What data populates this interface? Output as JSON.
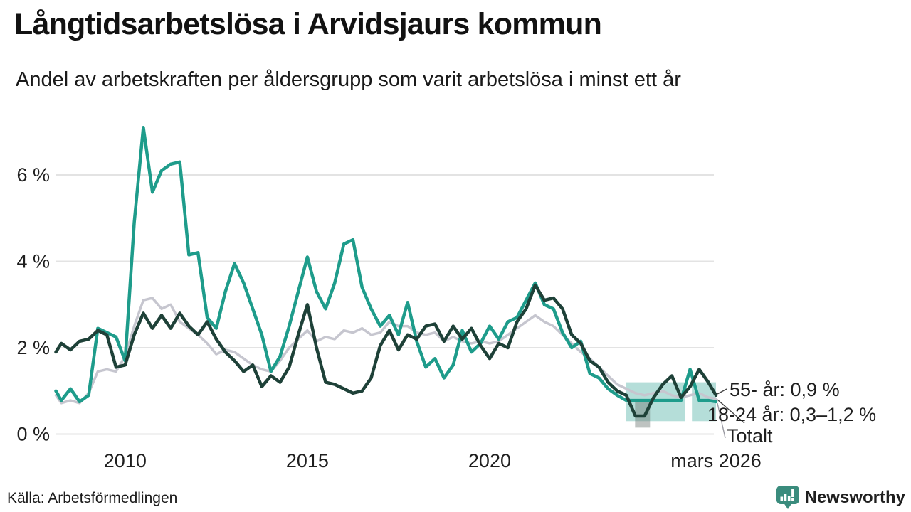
{
  "chart_data": {
    "type": "line",
    "title": "Långtidsarbetslösa i Arvidsjaurs kommun",
    "subtitle": "Andel av arbetskraften per åldersgrupp som varit arbetslösa i minst ett år",
    "x_unit": "year (monthly data, decimal years)",
    "xlim": [
      2008.09,
      2026.21
    ],
    "ylim": [
      0,
      7.6
    ],
    "grid": "horizontal",
    "legend_position": "end-of-line labels (right side)",
    "yticks": [
      {
        "v": 0,
        "label": "0 %"
      },
      {
        "v": 2,
        "label": "2 %"
      },
      {
        "v": 4,
        "label": "4 %"
      },
      {
        "v": 6,
        "label": "6 %"
      }
    ],
    "xticks": [
      {
        "v": 2010,
        "label": "2010"
      },
      {
        "v": 2015,
        "label": "2015"
      },
      {
        "v": 2020,
        "label": "2020"
      },
      {
        "v": 2026.21,
        "label": "mars 2026"
      }
    ],
    "x": [
      2008.1,
      2008.25,
      2008.5,
      2008.75,
      2009,
      2009.25,
      2009.5,
      2009.75,
      2010,
      2010.25,
      2010.5,
      2010.75,
      2011,
      2011.25,
      2011.5,
      2011.75,
      2012,
      2012.25,
      2012.5,
      2012.75,
      2013,
      2013.25,
      2013.5,
      2013.75,
      2014,
      2014.25,
      2014.5,
      2014.75,
      2015,
      2015.25,
      2015.5,
      2015.75,
      2016,
      2016.25,
      2016.5,
      2016.75,
      2017,
      2017.25,
      2017.5,
      2017.75,
      2018,
      2018.25,
      2018.5,
      2018.75,
      2019,
      2019.25,
      2019.5,
      2019.75,
      2020,
      2020.25,
      2020.5,
      2020.75,
      2021,
      2021.25,
      2021.5,
      2021.75,
      2022,
      2022.25,
      2022.5,
      2022.75,
      2023,
      2023.25,
      2023.5,
      2023.75,
      2024,
      2024.25,
      2024.5,
      2024.75,
      2025,
      2025.25,
      2025.5,
      2025.75,
      2026,
      2026.21
    ],
    "series": [
      {
        "name": "18-24 år",
        "color": "#1E9C8B",
        "values": [
          1.0,
          0.78,
          1.05,
          0.75,
          0.9,
          2.45,
          2.35,
          2.25,
          1.7,
          4.9,
          7.1,
          5.6,
          6.1,
          6.25,
          6.3,
          4.15,
          4.2,
          2.7,
          2.45,
          3.3,
          3.95,
          3.5,
          2.9,
          2.3,
          1.45,
          1.8,
          2.5,
          3.3,
          4.1,
          3.3,
          2.9,
          3.5,
          4.4,
          4.5,
          3.4,
          2.9,
          2.5,
          2.75,
          2.3,
          3.05,
          2.15,
          1.55,
          1.75,
          1.3,
          1.6,
          2.4,
          1.9,
          2.1,
          2.5,
          2.2,
          2.6,
          2.7,
          3.1,
          3.5,
          3.0,
          2.9,
          2.35,
          2.0,
          2.15,
          1.4,
          1.3,
          1.05,
          0.9,
          0.78,
          0.78,
          0.78,
          0.78,
          0.78,
          0.78,
          0.78,
          1.5,
          0.78,
          0.78,
          0.75
        ]
      },
      {
        "name": "55- år",
        "color": "#1E4138",
        "values": [
          1.9,
          2.1,
          1.95,
          2.15,
          2.2,
          2.4,
          2.3,
          1.55,
          1.6,
          2.3,
          2.8,
          2.45,
          2.75,
          2.45,
          2.8,
          2.5,
          2.3,
          2.6,
          2.2,
          1.9,
          1.7,
          1.45,
          1.6,
          1.1,
          1.35,
          1.2,
          1.55,
          2.3,
          3.0,
          2.0,
          1.2,
          1.15,
          1.05,
          0.95,
          1.0,
          1.3,
          2.05,
          2.4,
          1.95,
          2.3,
          2.2,
          2.5,
          2.55,
          2.15,
          2.5,
          2.2,
          2.45,
          2.05,
          1.75,
          2.1,
          2.0,
          2.6,
          2.9,
          3.45,
          3.1,
          3.15,
          2.9,
          2.3,
          2.1,
          1.7,
          1.55,
          1.2,
          1.0,
          0.9,
          0.42,
          0.42,
          0.85,
          1.15,
          1.35,
          0.85,
          1.1,
          1.5,
          1.2,
          0.9
        ]
      },
      {
        "name": "Totalt",
        "color": "#C6C6CF",
        "values": [
          0.9,
          0.72,
          0.78,
          0.72,
          0.95,
          1.45,
          1.5,
          1.45,
          1.8,
          2.5,
          3.1,
          3.15,
          2.9,
          3.0,
          2.6,
          2.45,
          2.3,
          2.1,
          1.85,
          1.95,
          1.9,
          1.75,
          1.6,
          1.5,
          1.45,
          1.7,
          2.0,
          2.2,
          2.4,
          2.15,
          2.25,
          2.2,
          2.4,
          2.35,
          2.45,
          2.3,
          2.35,
          2.6,
          2.5,
          2.5,
          2.35,
          2.3,
          2.35,
          2.15,
          2.25,
          2.15,
          2.1,
          2.15,
          2.1,
          2.15,
          2.3,
          2.45,
          2.6,
          2.75,
          2.6,
          2.5,
          2.3,
          2.1,
          1.9,
          1.75,
          1.55,
          1.35,
          1.15,
          1.05,
          0.95,
          0.9,
          0.95,
          1.0,
          0.9,
          0.85,
          0.9,
          0.95,
          0.85,
          0.82
        ]
      }
    ],
    "bands": [
      {
        "series": "18-24 år",
        "x_from": 2023.75,
        "x_to": 2025.37,
        "y_from": 0.3,
        "y_to": 1.2,
        "color": "#1E9C8B",
        "opacity": 0.33
      },
      {
        "series": "18-24 år",
        "x_from": 2025.55,
        "x_to": 2026.21,
        "y_from": 0.3,
        "y_to": 1.2,
        "color": "#1E9C8B",
        "opacity": 0.33
      },
      {
        "series": "55- år",
        "x_from": 2023.99,
        "x_to": 2024.4,
        "y_from": 0.15,
        "y_to": 0.75,
        "color": "#6F7A76",
        "opacity": 0.45
      }
    ],
    "annotations": [
      {
        "series": "55- år",
        "label": "55- år: 0,9 %"
      },
      {
        "series": "18-24 år",
        "label": "18-24 år: 0,3–1,2 %"
      },
      {
        "series": "Totalt",
        "label": "Totalt"
      }
    ]
  },
  "footer": {
    "source_label": "Källa: Arbetsförmedlingen",
    "brand_name": "Newsworthy",
    "brand_color": "#3A8C7D"
  },
  "colors": {
    "series_18_24": "#1E9C8B",
    "series_55": "#1E4138",
    "series_total": "#C6C6CF",
    "gridline": "#E3E3E3",
    "text": "#1F1F1F",
    "brand": "#3A8C7D"
  }
}
